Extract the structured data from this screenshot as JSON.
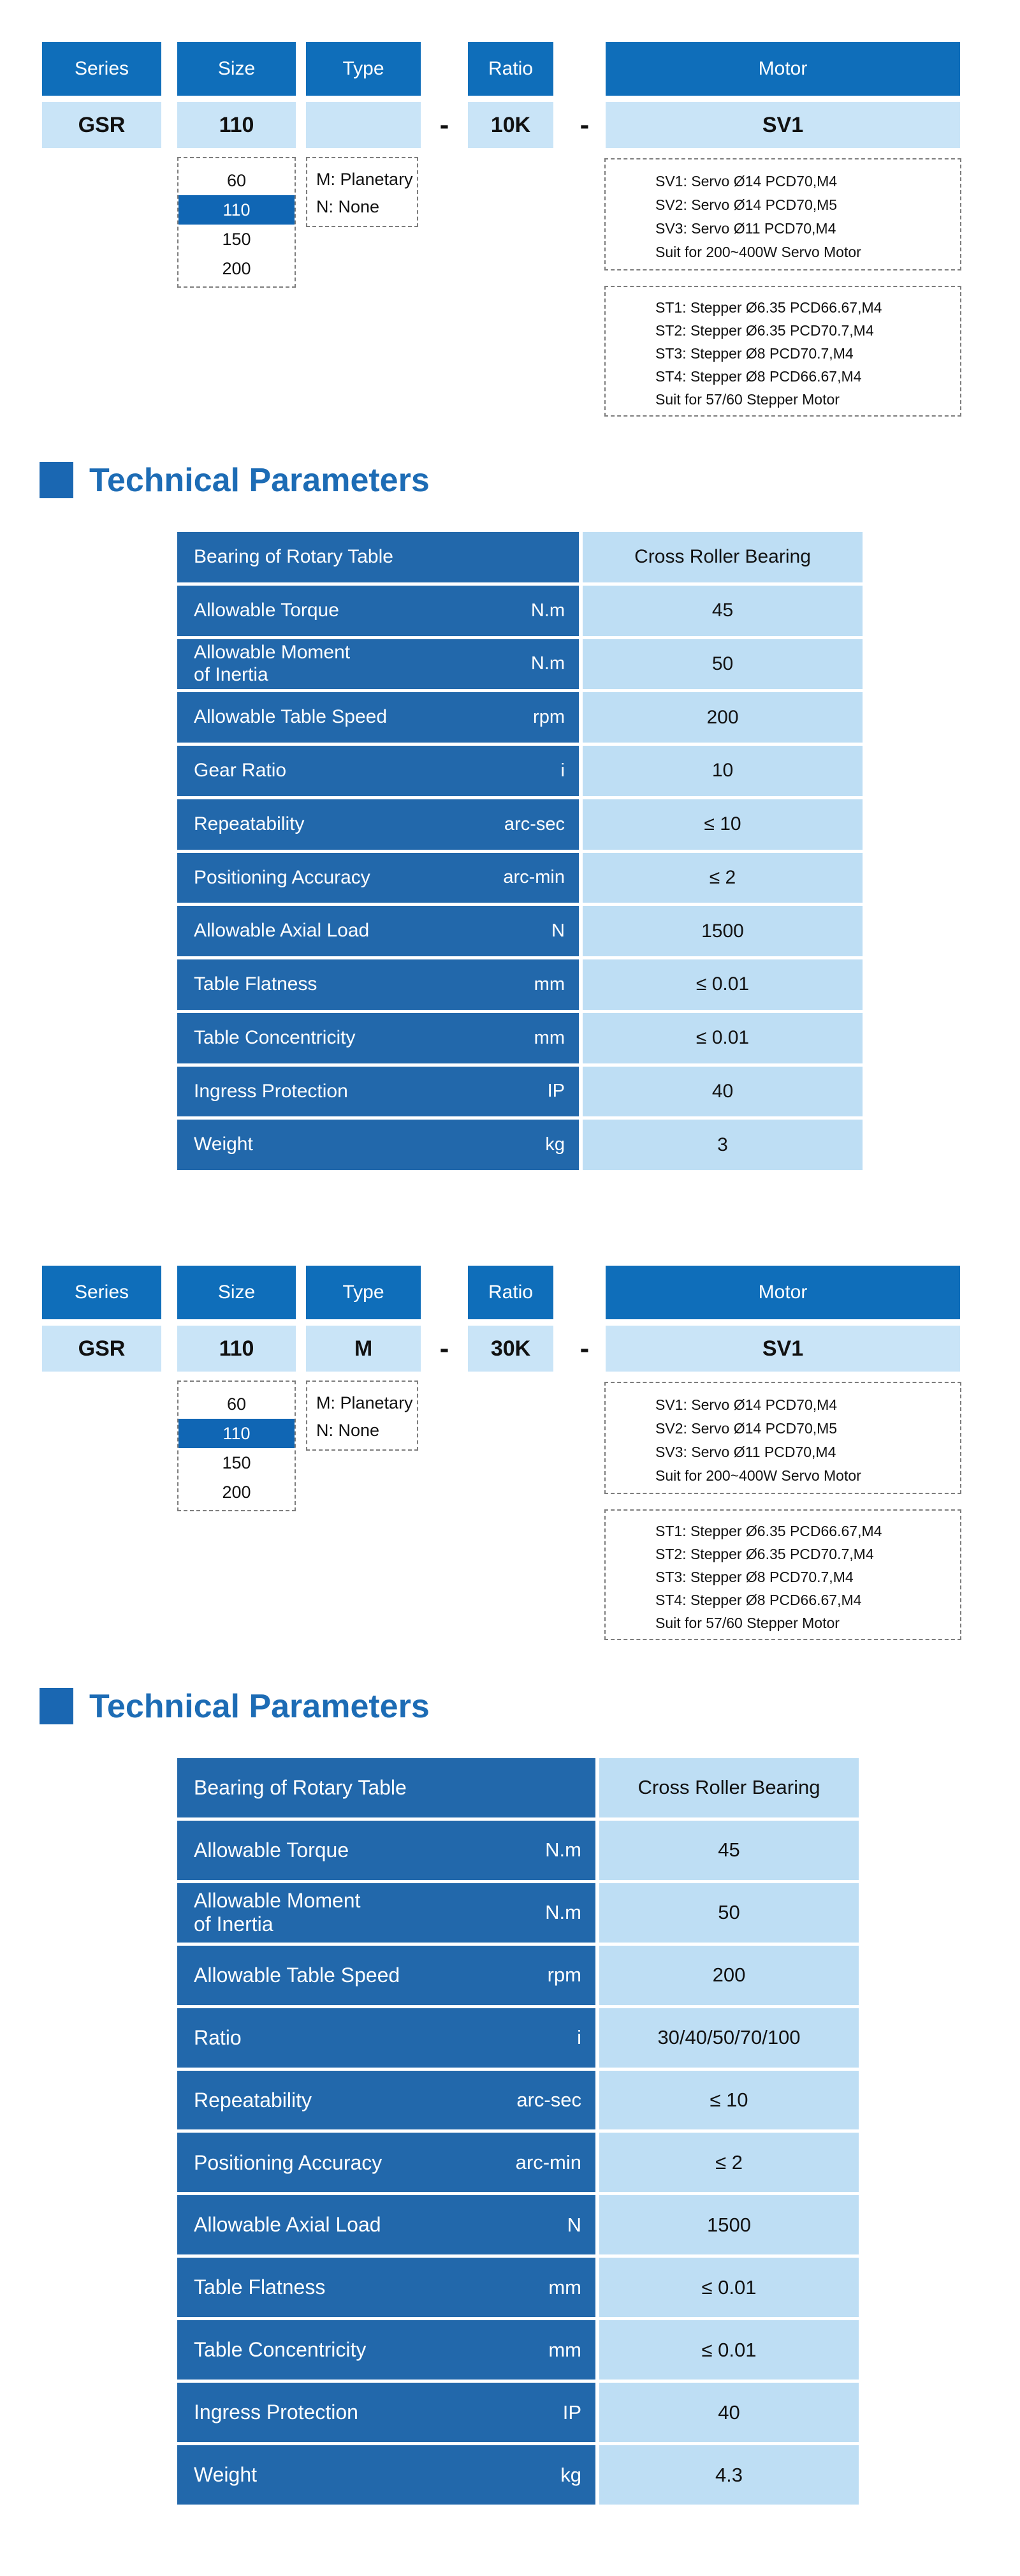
{
  "glyphs": {
    "dash": "-"
  },
  "colors": {
    "header_blue": "#0f6eba",
    "table_label_blue": "#2268ab",
    "light_cell_blue": "#bedef4",
    "builder_value_blue": "#c9e4f7",
    "heading_blue": "#1d6cb5",
    "selected_option_blue": "#1066b4"
  },
  "builder1": {
    "headers": {
      "series": "Series",
      "size": "Size",
      "type": "Type",
      "ratio": "Ratio",
      "motor": "Motor"
    },
    "values": {
      "series": "GSR",
      "size": "110",
      "type": "",
      "ratio": "10K",
      "motor": "SV1"
    },
    "size_options": [
      "60",
      "110",
      "150",
      "200"
    ],
    "selected_size": "110",
    "type_legend": [
      "M: Planetary",
      "N: None"
    ],
    "servo_notes": [
      "SV1: Servo Ø14 PCD70,M4",
      "SV2: Servo Ø14 PCD70,M5",
      "SV3: Servo Ø11 PCD70,M4",
      "Suit for 200~400W Servo Motor"
    ],
    "stepper_notes": [
      "ST1: Stepper Ø6.35 PCD66.67,M4",
      "ST2: Stepper Ø6.35 PCD70.7,M4",
      "ST3: Stepper Ø8 PCD70.7,M4",
      "ST4: Stepper Ø8 PCD66.67,M4",
      "Suit for 57/60 Stepper Motor"
    ]
  },
  "builder2": {
    "headers": {
      "series": "Series",
      "size": "Size",
      "type": "Type",
      "ratio": "Ratio",
      "motor": "Motor"
    },
    "values": {
      "series": "GSR",
      "size": "110",
      "type": "M",
      "ratio": "30K",
      "motor": "SV1"
    },
    "size_options": [
      "60",
      "110",
      "150",
      "200"
    ],
    "selected_size": "110",
    "type_legend": [
      "M: Planetary",
      "N: None"
    ],
    "servo_notes": [
      "SV1: Servo Ø14 PCD70,M4",
      "SV2: Servo Ø14 PCD70,M5",
      "SV3: Servo Ø11 PCD70,M4",
      "Suit for 200~400W Servo Motor"
    ],
    "stepper_notes": [
      "ST1: Stepper Ø6.35 PCD66.67,M4",
      "ST2: Stepper Ø6.35 PCD70.7,M4",
      "ST3: Stepper Ø8 PCD70.7,M4",
      "ST4: Stepper Ø8 PCD66.67,M4",
      "Suit for 57/60 Stepper Motor"
    ]
  },
  "section1": {
    "heading": "Technical Parameters",
    "table": {
      "rows": [
        {
          "label": "Bearing of Rotary Table",
          "unit": "",
          "value": "Cross Roller Bearing"
        },
        {
          "label": "Allowable Torque",
          "unit": "N.m",
          "value": "45"
        },
        {
          "label": "Allowable Moment\nof Inertia",
          "unit": "N.m",
          "value": "50"
        },
        {
          "label": "Allowable Table Speed",
          "unit": "rpm",
          "value": "200"
        },
        {
          "label": "Gear Ratio",
          "unit": "i",
          "value": "10"
        },
        {
          "label": "Repeatability",
          "unit": "arc-sec",
          "value": "≤ 10"
        },
        {
          "label": "Positioning Accuracy",
          "unit": "arc-min",
          "value": "≤ 2"
        },
        {
          "label": "Allowable Axial Load",
          "unit": "N",
          "value": "1500"
        },
        {
          "label": "Table Flatness",
          "unit": "mm",
          "value": "≤ 0.01"
        },
        {
          "label": "Table Concentricity",
          "unit": "mm",
          "value": "≤ 0.01"
        },
        {
          "label": "Ingress Protection",
          "unit": "IP",
          "value": "40"
        },
        {
          "label": "Weight",
          "unit": "kg",
          "value": "3"
        }
      ]
    }
  },
  "section2": {
    "heading": "Technical Parameters",
    "table": {
      "rows": [
        {
          "label": "Bearing of Rotary Table",
          "unit": "",
          "value": "Cross Roller Bearing"
        },
        {
          "label": "Allowable Torque",
          "unit": "N.m",
          "value": "45"
        },
        {
          "label": "Allowable Moment\nof Inertia",
          "unit": "N.m",
          "value": "50"
        },
        {
          "label": "Allowable Table  Speed",
          "unit": "rpm",
          "value": "200"
        },
        {
          "label": "Ratio",
          "unit": "i",
          "value": "30/40/50/70/100"
        },
        {
          "label": "Repeatability",
          "unit": "arc-sec",
          "value": "≤ 10"
        },
        {
          "label": "Positioning Accuracy",
          "unit": "arc-min",
          "value": "≤ 2"
        },
        {
          "label": "Allowable Axial Load",
          "unit": "N",
          "value": "1500"
        },
        {
          "label": "Table Flatness",
          "unit": "mm",
          "value": "≤ 0.01"
        },
        {
          "label": "Table Concentricity",
          "unit": "mm",
          "value": "≤ 0.01"
        },
        {
          "label": "Ingress Protection",
          "unit": "IP",
          "value": "40"
        },
        {
          "label": "Weight",
          "unit": "kg",
          "value": "4.3"
        }
      ]
    }
  }
}
